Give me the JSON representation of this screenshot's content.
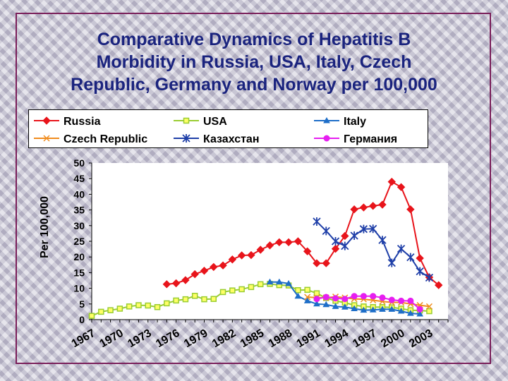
{
  "slide": {
    "title_lines": [
      "Comparative Dynamics of Hepatitis B",
      "Morbidity in Russia, USA, Italy, Czech",
      "Republic, Germany and Norway per 100,000"
    ]
  },
  "chart_data": {
    "type": "line",
    "title": "Comparative Dynamics of Hepatitis B Morbidity in Russia, USA, Italy, Czech Republic, Germany and Norway per 100,000",
    "ylabel": "Per 100,000",
    "xlabel": "",
    "ylim": [
      0,
      50
    ],
    "xlim": [
      1967,
      2005
    ],
    "y_ticks": [
      0,
      5,
      10,
      15,
      20,
      25,
      30,
      35,
      40,
      45,
      50
    ],
    "x_ticks": [
      "1967",
      "1970",
      "1973",
      "1976",
      "1979",
      "1982",
      "1985",
      "1988",
      "1991",
      "1994",
      "1997",
      "2000",
      "2003"
    ],
    "grid": false,
    "legend_position": "top",
    "series": [
      {
        "name": "Russia",
        "color": "#e8141b",
        "marker": "diamond",
        "x": [
          1975,
          1976,
          1977,
          1978,
          1979,
          1980,
          1981,
          1982,
          1983,
          1984,
          1985,
          1986,
          1987,
          1988,
          1989,
          1990,
          1991,
          1992,
          1993,
          1994,
          1995,
          1996,
          1997,
          1998,
          1999,
          2000,
          2001,
          2002,
          2003,
          2004,
          2005
        ],
        "y": [
          11.3,
          11.6,
          12.6,
          14.5,
          15.6,
          16.8,
          17.3,
          19.2,
          20.5,
          20.6,
          22.3,
          23.7,
          24.7,
          24.7,
          25.0,
          21.8,
          18.0,
          18.0,
          22.6,
          26.7,
          35.2,
          35.8,
          36.3,
          36.7,
          44.0,
          42.3,
          35.2,
          19.6,
          13.5,
          11.0,
          null
        ]
      },
      {
        "name": "USA",
        "color": "#9acd32",
        "marker": "square",
        "x": [
          1967,
          1968,
          1969,
          1970,
          1971,
          1972,
          1973,
          1974,
          1975,
          1976,
          1977,
          1978,
          1979,
          1980,
          1981,
          1982,
          1983,
          1984,
          1985,
          1986,
          1987,
          1988,
          1989,
          1990,
          1991,
          1992,
          1993,
          1994,
          1995,
          1996,
          1997,
          1998,
          1999,
          2000,
          2001,
          2002,
          2003,
          2004
        ],
        "y": [
          1.2,
          2.5,
          3.0,
          3.5,
          4.2,
          4.6,
          4.5,
          4.0,
          5.2,
          6.1,
          6.5,
          7.6,
          6.5,
          6.6,
          8.8,
          9.3,
          9.7,
          10.4,
          11.3,
          11.4,
          11.0,
          10.9,
          9.4,
          9.5,
          8.4,
          6.9,
          6.0,
          5.4,
          4.6,
          4.2,
          4.0,
          4.0,
          3.9,
          3.5,
          3.0,
          2.9,
          2.7,
          null
        ]
      },
      {
        "name": "Italy",
        "color": "#1e6ec8",
        "marker": "triangle",
        "x": [
          1986,
          1987,
          1988,
          1989,
          1990,
          1991,
          1992,
          1993,
          1994,
          1995,
          1996,
          1997,
          1998,
          1999,
          2000,
          2001,
          2002
        ],
        "y": [
          12.0,
          12.0,
          11.5,
          7.5,
          6.0,
          5.0,
          4.8,
          4.2,
          4.0,
          3.5,
          3.0,
          3.1,
          3.3,
          3.3,
          2.7,
          2.0,
          1.8
        ]
      },
      {
        "name": "Czech Republic",
        "color": "#f08c1e",
        "marker": "cross",
        "x": [
          1990,
          1991,
          1992,
          1993,
          1994,
          1995,
          1996,
          1997,
          1998,
          1999,
          2000,
          2001,
          2002,
          2003
        ],
        "y": [
          7.2,
          7.0,
          7.0,
          7.3,
          7.0,
          6.6,
          6.5,
          6.2,
          5.8,
          5.5,
          5.5,
          5.0,
          4.6,
          4.2
        ]
      },
      {
        "name": "Казахстан",
        "color": "#1f3fa8",
        "marker": "asterisk",
        "x": [
          1991,
          1992,
          1993,
          1994,
          1995,
          1996,
          1997,
          1998,
          1999,
          2000,
          2001,
          2002,
          2003
        ],
        "y": [
          31.3,
          28.3,
          25.0,
          23.5,
          26.8,
          28.9,
          29.0,
          25.4,
          18.1,
          22.6,
          19.9,
          15.4,
          13.4
        ]
      },
      {
        "name": "Германия",
        "color": "#e61ef0",
        "marker": "circle",
        "x": [
          1991,
          1992,
          1993,
          1994,
          1995,
          1996,
          1997,
          1998,
          1999,
          2000,
          2001,
          2002
        ],
        "y": [
          6.6,
          7.2,
          6.8,
          6.6,
          7.5,
          7.5,
          7.5,
          7.0,
          6.3,
          6.0,
          6.0,
          3.3
        ]
      }
    ]
  }
}
